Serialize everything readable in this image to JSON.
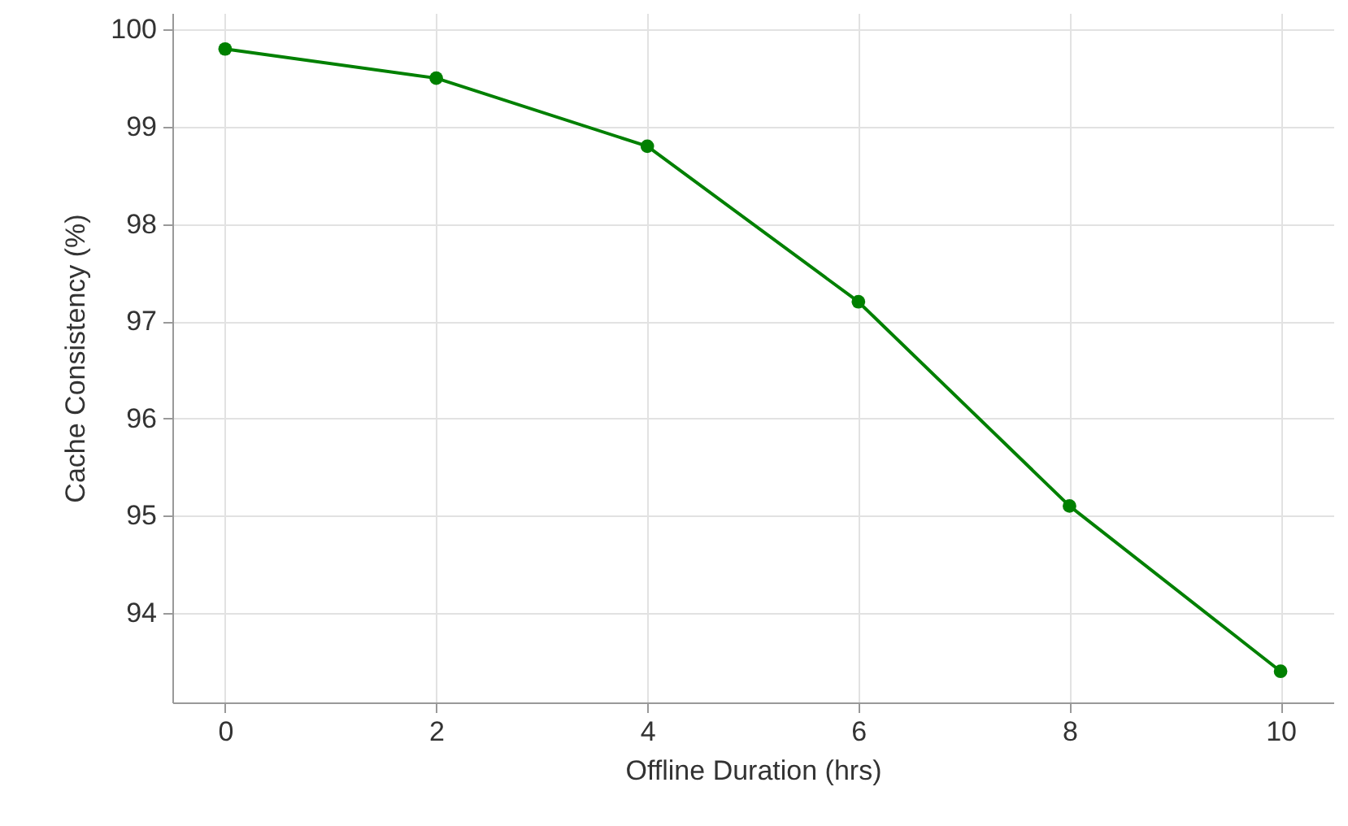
{
  "chart_data": {
    "type": "line",
    "xlabel": "Offline Duration (hrs)",
    "ylabel": "Cache Consistency (%)",
    "x": [
      0,
      2,
      4,
      6,
      8,
      10
    ],
    "series": [
      {
        "color": "#008000",
        "values": [
          99.8,
          99.5,
          98.8,
          97.2,
          95.1,
          93.4
        ]
      }
    ],
    "xlim": [
      -0.5,
      10.5
    ],
    "xticks": [
      0,
      2,
      4,
      6,
      8,
      10
    ],
    "ylim": [
      93.08,
      100.17
    ],
    "yticks": [
      94,
      95,
      96,
      97,
      98,
      99,
      100
    ],
    "grid": true,
    "marker": "circle",
    "line_style": "solid"
  }
}
